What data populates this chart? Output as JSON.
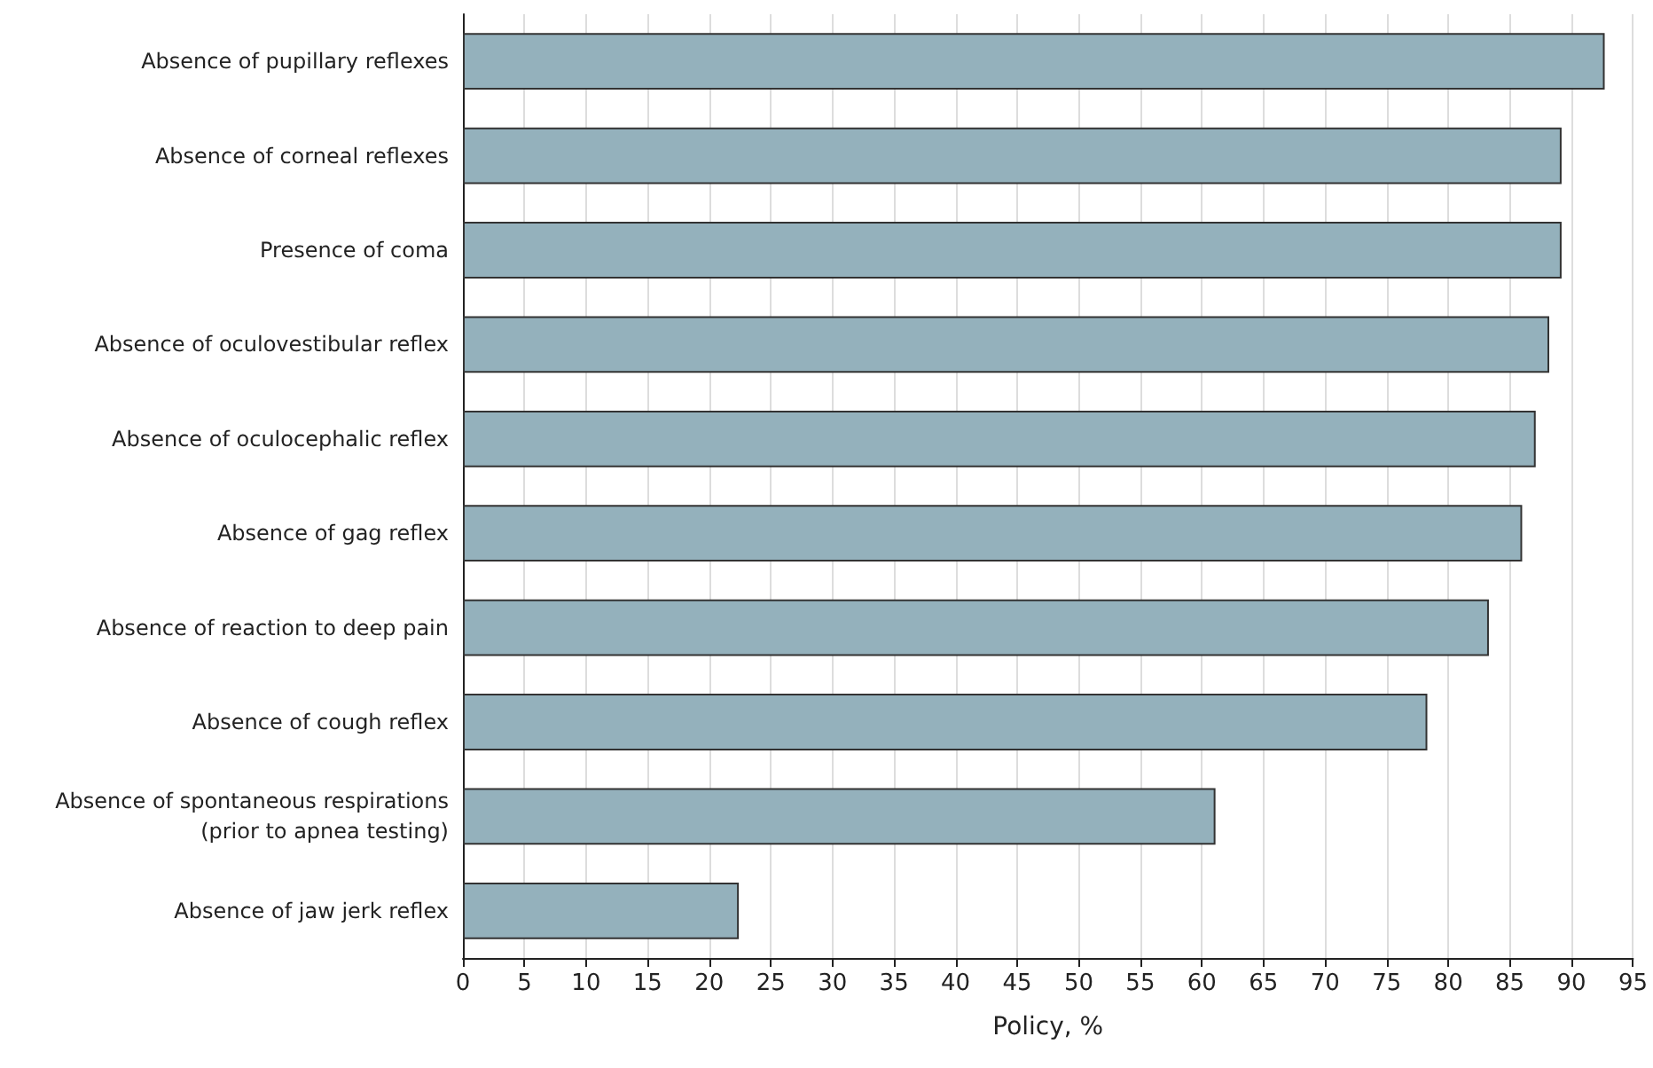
{
  "chart_data": {
    "type": "bar",
    "orientation": "horizontal",
    "xlabel": "Policy, %",
    "categories": [
      "Absence of pupillary reflexes",
      "Absence of corneal reflexes",
      "Presence of coma",
      "Absence of oculovestibular reflex",
      "Absence of oculocephalic reflex",
      "Absence of gag reflex",
      "Absence of reaction to deep pain",
      "Absence of cough reflex",
      "Absence of spontaneous respirations\n(prior to apnea testing)",
      "Absence of jaw jerk reflex"
    ],
    "values": [
      92.7,
      89.2,
      89.2,
      88.2,
      87.1,
      86.0,
      83.3,
      78.3,
      61.1,
      22.4
    ],
    "color": "#94b1bc",
    "xlim": [
      0,
      95
    ],
    "xticks": [
      0,
      5,
      10,
      15,
      20,
      25,
      30,
      35,
      40,
      45,
      50,
      55,
      60,
      65,
      70,
      75,
      80,
      85,
      90,
      95
    ],
    "grid": "x"
  }
}
